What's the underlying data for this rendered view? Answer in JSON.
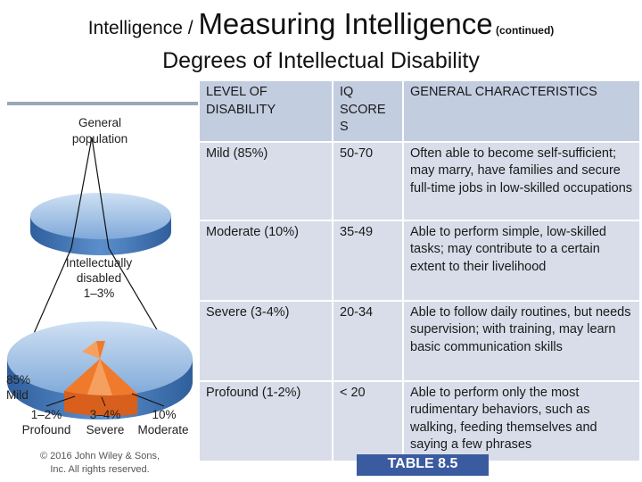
{
  "title": {
    "prefix": "Intelligence / ",
    "main": "Measuring Intelligence",
    "suffix": " (continued)"
  },
  "subtitle": "Degrees of Intellectual Disability",
  "figure": {
    "general_population_line1": "General",
    "general_population_line2": "population",
    "disabled_line1": "Intellectually",
    "disabled_line2": "disabled",
    "disabled_line3": "1–3%",
    "mild_pct": "85%",
    "mild_label": "Mild",
    "profound_pct": "1–2%",
    "profound_label": "Profound",
    "severe_pct": "3–4%",
    "severe_label": "Severe",
    "moderate_pct": "10%",
    "moderate_label": "Moderate"
  },
  "copyright_line1": "© 2016 John Wiley & Sons,",
  "copyright_line2": "Inc. All rights reserved.",
  "table": {
    "headers": [
      "LEVEL OF DISABILITY",
      "IQ SCORE S",
      "GENERAL CHARACTERISTICS"
    ],
    "rows": [
      {
        "level": "Mild (85%)",
        "iq": "50-70",
        "characteristics": "Often able to become self-sufficient; may marry, have families and secure full-time jobs in low-skilled occupations"
      },
      {
        "level": "Moderate (10%)",
        "iq": "35-49",
        "characteristics": "Able to perform simple, low-skilled tasks; may contribute to a certain extent to their livelihood"
      },
      {
        "level": "Severe (3-4%)",
        "iq": "20-34",
        "characteristics": "Able to follow daily routines, but needs supervision; with training, may learn basic communication skills"
      },
      {
        "level": "Profound (1-2%)",
        "iq": "< 20",
        "characteristics": "Able to perform only the most rudimentary behaviors, such as walking, feeding themselves and saying a few phrases"
      }
    ]
  },
  "table_label": "TABLE 8.5",
  "colors": {
    "pie_blue": "#4f86c6",
    "pie_blue_dark": "#2f5f9c",
    "pie_orange": "#f07a2c",
    "cell": "#d8dde9",
    "label_bg": "#3b5ba0"
  }
}
